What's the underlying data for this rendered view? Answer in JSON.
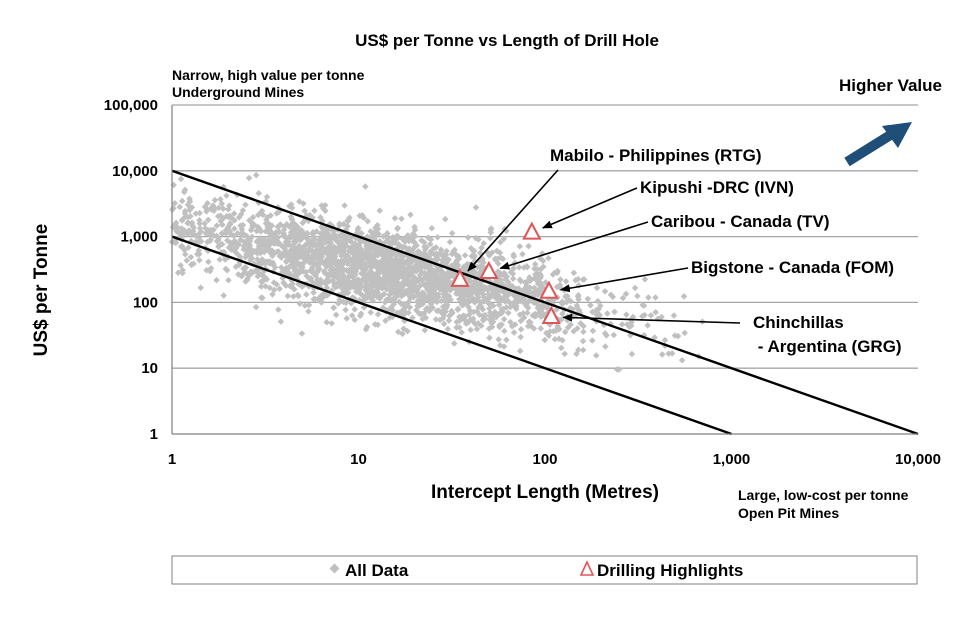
{
  "chart_data": {
    "type": "scatter",
    "title": "US$ per Tonne vs Length of Drill Hole",
    "xlabel": "Intercept Length (Metres)",
    "ylabel": "US$ per Tonne",
    "x_scale": "log",
    "y_scale": "log",
    "xlim": [
      1,
      10000
    ],
    "ylim": [
      1,
      100000
    ],
    "x_ticks": [
      {
        "value": 1,
        "label": "1"
      },
      {
        "value": 10,
        "label": "10"
      },
      {
        "value": 100,
        "label": "100"
      },
      {
        "value": 1000,
        "label": "1,000"
      },
      {
        "value": 10000,
        "label": "10,000"
      }
    ],
    "y_ticks": [
      {
        "value": 1,
        "label": "1"
      },
      {
        "value": 10,
        "label": "10"
      },
      {
        "value": 100,
        "label": "100"
      },
      {
        "value": 1000,
        "label": "1,000"
      },
      {
        "value": 10000,
        "label": "10,000"
      },
      {
        "value": 100000,
        "label": "100,000"
      }
    ],
    "grid": "horizontal",
    "legend_position": "bottom",
    "corner_notes": {
      "top_left": [
        "Narrow, high value per tonne",
        "Underground Mines"
      ],
      "top_right": "Higher Value",
      "bottom_right": [
        "Large, low-cost per tonne",
        "Open Pit Mines"
      ]
    },
    "reference_lines": [
      {
        "x": [
          1,
          10000
        ],
        "y": [
          10000,
          1
        ]
      },
      {
        "x": [
          1,
          1000
        ],
        "y": [
          1000,
          1
        ]
      }
    ],
    "series": [
      {
        "name": "All Data",
        "marker": "diamond",
        "color": "#c0c0c0",
        "distribution": {
          "x_range": [
            1,
            700
          ],
          "y_range": [
            1,
            20000
          ],
          "trend_slope": -1,
          "center_y_at_x1": 1300,
          "approx_points": 2600
        }
      },
      {
        "name": "Drilling Highlights",
        "marker": "triangle",
        "color": "#e05555",
        "points": [
          {
            "label": "Mabilo - Philippines (RTG)",
            "x": 35,
            "y": 220
          },
          {
            "label": "Kipushi -DRC (IVN)",
            "x": 85,
            "y": 1150
          },
          {
            "label": "Caribou - Canada (TV)",
            "x": 50,
            "y": 290
          },
          {
            "label": "Bigstone - Canada (FOM)",
            "x": 105,
            "y": 145
          },
          {
            "label": "Chinchillas\n - Argentina (GRG)",
            "x": 108,
            "y": 60
          }
        ]
      }
    ],
    "annotations": [
      {
        "point": 0,
        "lines": [
          "Mabilo - Philippines (RTG)"
        ]
      },
      {
        "point": 1,
        "lines": [
          "Kipushi -DRC (IVN)"
        ]
      },
      {
        "point": 2,
        "lines": [
          "Caribou - Canada (TV)"
        ]
      },
      {
        "point": 3,
        "lines": [
          "Bigstone - Canada (FOM)"
        ]
      },
      {
        "point": 4,
        "lines": [
          "Chinchillas",
          " - Argentina (GRG)"
        ]
      }
    ],
    "colors": {
      "grid": "#a6a6a6",
      "ref_line": "#000000",
      "arrow": "#1f4e79"
    }
  }
}
